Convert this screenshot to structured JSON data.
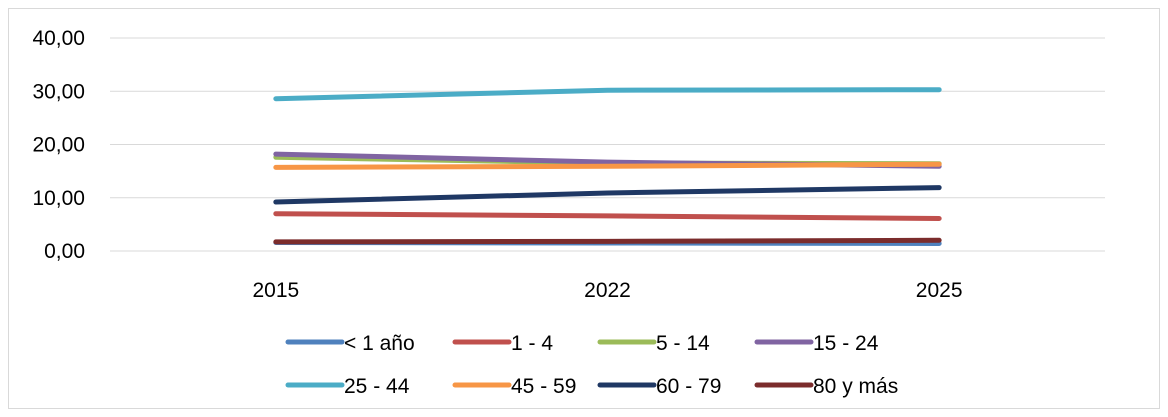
{
  "chart_data": {
    "type": "line",
    "categories": [
      "2015",
      "2022",
      "2025"
    ],
    "ylim": [
      0,
      40
    ],
    "yticks": [
      "0,00",
      "10,00",
      "20,00",
      "30,00",
      "40,00"
    ],
    "grid": true,
    "legend_position": "bottom",
    "series": [
      {
        "name": "< 1 año",
        "color": "#4f81bd",
        "values": [
          1.6,
          1.5,
          1.4
        ]
      },
      {
        "name": "1 - 4",
        "color": "#c0504d",
        "values": [
          7.0,
          6.6,
          6.1
        ]
      },
      {
        "name": "5 - 14",
        "color": "#9bbb59",
        "values": [
          17.6,
          16.5,
          16.4
        ]
      },
      {
        "name": "15 - 24",
        "color": "#8064a2",
        "values": [
          18.2,
          16.7,
          15.9
        ]
      },
      {
        "name": "25 - 44",
        "color": "#4bacc6",
        "values": [
          28.6,
          30.2,
          30.3
        ]
      },
      {
        "name": "45 - 59",
        "color": "#f79646",
        "values": [
          15.7,
          15.9,
          16.3
        ]
      },
      {
        "name": "60 - 79",
        "color": "#1f3864",
        "values": [
          9.2,
          10.9,
          11.9
        ]
      },
      {
        "name": "80 y más",
        "color": "#7b2c2c",
        "values": [
          1.7,
          1.8,
          2.0
        ]
      }
    ]
  }
}
